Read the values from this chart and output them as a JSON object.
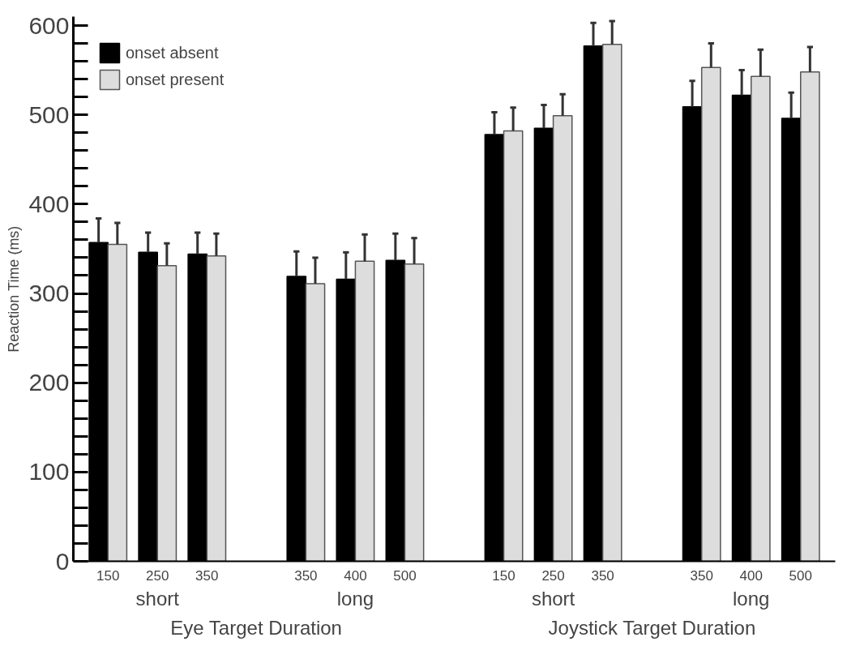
{
  "chart_data": {
    "type": "bar",
    "ylabel": "Reaction Time (ms)",
    "categories": [
      "150",
      "250",
      "350",
      null,
      "350",
      "400",
      "500",
      null,
      "150",
      "250",
      "350",
      null,
      "350",
      "400",
      "500"
    ],
    "series": [
      {
        "name": "onset absent",
        "color": "#000000",
        "values": [
          357,
          346,
          344,
          null,
          319,
          316,
          337,
          null,
          478,
          485,
          577,
          null,
          509,
          522,
          496
        ],
        "errors": [
          [
            357,
            384
          ],
          [
            346,
            368
          ],
          [
            344,
            368
          ],
          null,
          [
            319,
            347
          ],
          [
            316,
            346
          ],
          [
            337,
            367
          ],
          null,
          [
            478,
            503
          ],
          [
            485,
            511
          ],
          [
            577,
            603
          ],
          null,
          [
            509,
            538
          ],
          [
            522,
            550
          ],
          [
            496,
            525
          ]
        ]
      },
      {
        "name": "onset present",
        "color": "#dddddd",
        "values": [
          355,
          331,
          342,
          null,
          311,
          336,
          333,
          null,
          482,
          499,
          579,
          null,
          553,
          543,
          548
        ],
        "errors": [
          [
            355,
            379
          ],
          [
            331,
            356
          ],
          [
            342,
            367
          ],
          null,
          [
            311,
            340
          ],
          [
            336,
            366
          ],
          [
            333,
            362
          ],
          null,
          [
            482,
            508
          ],
          [
            499,
            523
          ],
          [
            579,
            605
          ],
          null,
          [
            553,
            580
          ],
          [
            543,
            573
          ],
          [
            548,
            576
          ]
        ]
      }
    ],
    "annotations": [
      "short",
      "long",
      "short",
      "long",
      "Eye Target Duration",
      "Joystick Target Duration"
    ],
    "ylim": [
      0,
      610
    ],
    "yticks": [
      0,
      100,
      200,
      300,
      400,
      500,
      600
    ],
    "grid": false,
    "legend": "top left"
  }
}
